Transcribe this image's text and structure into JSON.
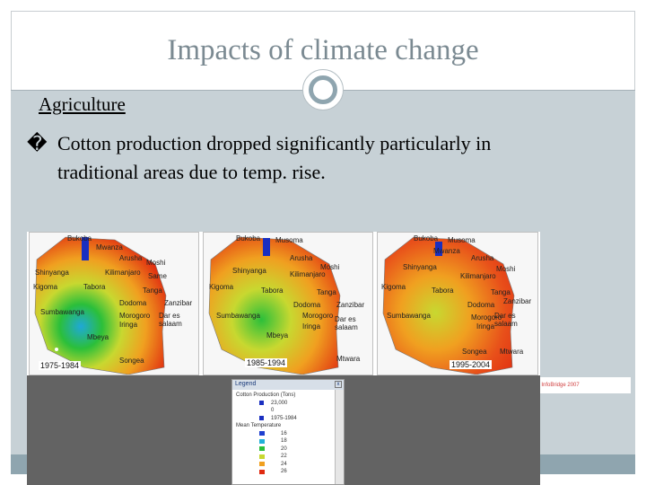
{
  "slide": {
    "title": "Impacts of climate change",
    "heading": "Agriculture",
    "bullet_mark": "�",
    "bullet_line1": "Cotton production dropped significantly particularly in",
    "bullet_line2": "traditional areas due to temp. rise."
  },
  "maps": [
    {
      "period": "1975-1984"
    },
    {
      "period": "1985-1994"
    },
    {
      "period": "1995-2004"
    }
  ],
  "place_labels": [
    "Bukoba",
    "Musoma",
    "Mwanza",
    "Arusha",
    "Moshi",
    "Shinyanga",
    "Kilimanjaro",
    "Same",
    "Kigoma",
    "Tabora",
    "Tanga",
    "Dodoma",
    "Zanzibar",
    "Morogoro",
    "Dar es salaam",
    "Iringa",
    "Sumbawanga",
    "Mbeya",
    "Songea",
    "Mtwara"
  ],
  "source": "Source: InfoBridge 2007",
  "legend": {
    "title": "Legend",
    "close": "x",
    "section_cotton": "Cotton Production (Tons)",
    "cotton_values": [
      "23,000",
      "0"
    ],
    "cotton_period": "1975-1984",
    "section_temp": "Mean Temperature",
    "temp_classes": [
      {
        "label": "16",
        "color": "#1f3fcf"
      },
      {
        "label": "18",
        "color": "#22b0d8"
      },
      {
        "label": "20",
        "color": "#2bbf3a"
      },
      {
        "label": "22",
        "color": "#c8d830"
      },
      {
        "label": "24",
        "color": "#f0a020"
      },
      {
        "label": "26",
        "color": "#e02a10"
      }
    ]
  },
  "colors": {
    "title": "#7b8a92",
    "band": "#c7d1d6",
    "accent": "#8fa5af"
  }
}
